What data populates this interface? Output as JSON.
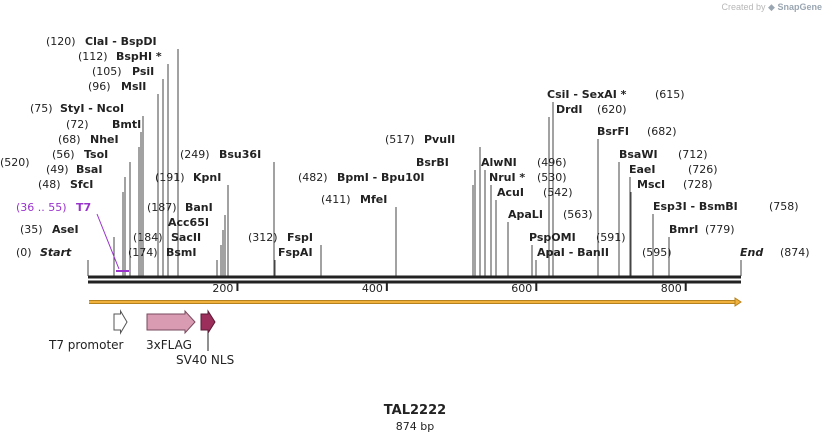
{
  "credit": {
    "prefix": "Created by",
    "brand": "SnapGene"
  },
  "plasmid": {
    "name": "TAL2222",
    "length_label": "874 bp",
    "length_bp": 874
  },
  "sites": [
    {
      "pos": "(0)",
      "name": "Start"
    },
    {
      "pos": "(35)",
      "name": "AseI"
    },
    {
      "pos": "(48)",
      "name": "SfcI"
    },
    {
      "pos": "(49)",
      "name": "BsaI"
    },
    {
      "pos": "(56)",
      "name": "TsoI"
    },
    {
      "pos": "(68)",
      "name": "NheI"
    },
    {
      "pos": "(72)",
      "name": "BmtI"
    },
    {
      "pos": "(75)",
      "name": "StyI - NcoI"
    },
    {
      "pos": "(96)",
      "name": "MslI"
    },
    {
      "pos": "(105)",
      "name": "PsiI"
    },
    {
      "pos": "(112)",
      "name": "BspHI *"
    },
    {
      "pos": "(120)",
      "name": "ClaI - BspDI"
    },
    {
      "pos": "(174)",
      "name": "BsmI"
    },
    {
      "pos": "(184)",
      "name": "SacII"
    },
    {
      "pos": "",
      "name": "Acc65I"
    },
    {
      "pos": "(187)",
      "name": "BanI"
    },
    {
      "pos": "(191)",
      "name": "KpnI"
    },
    {
      "pos": "(249)",
      "name": "Bsu36I"
    },
    {
      "pos": "",
      "name": "FspAI"
    },
    {
      "pos": "(312)",
      "name": "FspI"
    },
    {
      "pos": "(411)",
      "name": "MfeI"
    },
    {
      "pos": "(482)",
      "name": "BpmI - Bpu10I"
    },
    {
      "pos": "(496)",
      "name": "BsrBI"
    },
    {
      "pos": "(517)",
      "name": "PvuII"
    },
    {
      "pos": "(520)",
      "name": "AlwNI"
    },
    {
      "pos": "(530)",
      "name": "NruI *"
    },
    {
      "pos": "(542)",
      "name": "AcuI"
    },
    {
      "pos": "(563)",
      "name": "ApaLI"
    },
    {
      "pos": "(591)",
      "name": "PspOMI"
    },
    {
      "pos": "",
      "name": "ApaI - BanII"
    },
    {
      "pos": "(595)",
      "name": ""
    },
    {
      "pos": "(620)",
      "name": "DrdI"
    },
    {
      "pos": "(615)",
      "name": "CsiI - SexAI *"
    },
    {
      "pos": "(682)",
      "name": "BsrFI"
    },
    {
      "pos": "(712)",
      "name": "BsaWI"
    },
    {
      "pos": "(726)",
      "name": "EaeI"
    },
    {
      "pos": "(728)",
      "name": "MscI"
    },
    {
      "pos": "(758)",
      "name": "Esp3I - BsmBI"
    },
    {
      "pos": "(779)",
      "name": "BmrI"
    },
    {
      "pos": "(874)",
      "name": "End"
    }
  ],
  "primer": {
    "range": "(36 .. 55)",
    "name": "T7",
    "color": "#9933cc"
  },
  "ruler": {
    "ticks": [
      "200",
      "400",
      "600",
      "800"
    ],
    "tick_values": [
      200,
      400,
      600,
      800
    ]
  },
  "features": [
    {
      "name": "T7 promoter",
      "start": 36,
      "end": 55,
      "fill": "#ffffff",
      "stroke": "#555555"
    },
    {
      "name": "3xFLAG",
      "start": 79,
      "end": 144,
      "fill": "#d89bb2",
      "stroke": "#7a4a5e"
    },
    {
      "name": "SV40 NLS",
      "start": 153,
      "end": 174,
      "fill": "#9b2e5b",
      "stroke": "#5a1a35"
    }
  ],
  "colors": {
    "orf": "#f0b23c",
    "backbone": "#222222",
    "primer": "#9933cc"
  }
}
